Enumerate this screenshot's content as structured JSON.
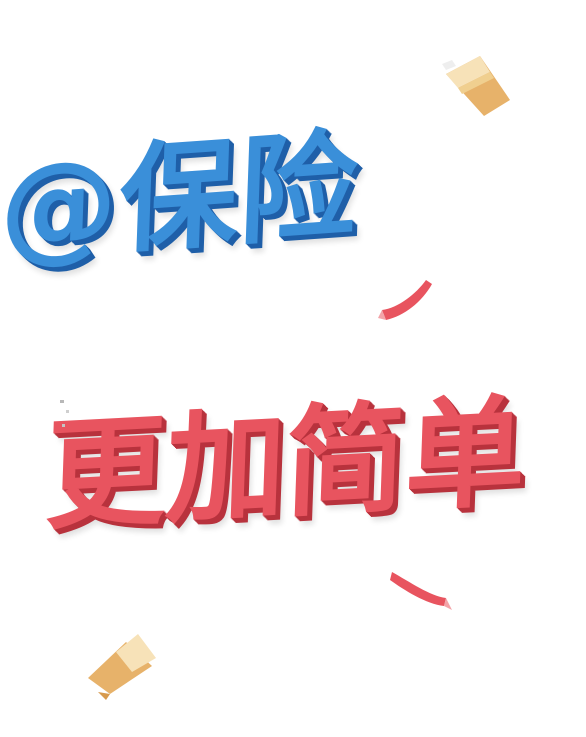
{
  "headline": {
    "line1": "@保险",
    "line2": "更加简单"
  },
  "colors": {
    "blue": "#3a8fd9",
    "blue_shadow": "#1f5fa8",
    "red": "#e8545f",
    "red_shadow": "#b8323d",
    "gold": "#e7b26a",
    "gold_light": "#f5d69c"
  },
  "decorations": [
    "confetti-ribbon-icon",
    "paper-scrap-icon"
  ]
}
